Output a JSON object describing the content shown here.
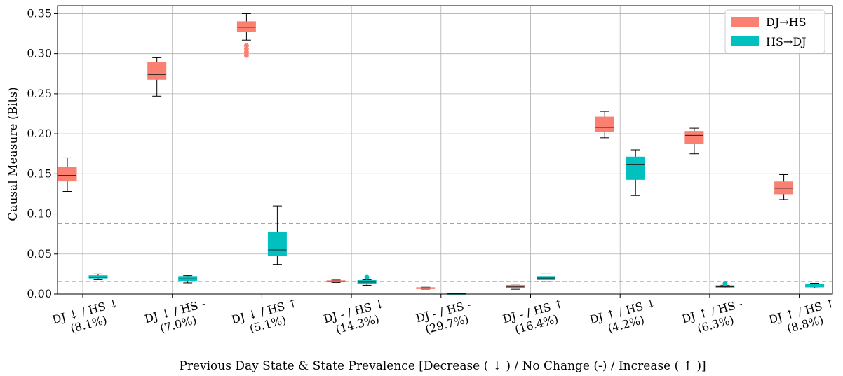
{
  "chart_data": {
    "type": "box",
    "title": "",
    "xlabel": "Previous Day State & State Prevalence [Decrease ( ↓ ) / No Change (-) / Increase ( ↑ )]",
    "ylabel": "Causal Measure (Bits)",
    "ylim": [
      0.0,
      0.36
    ],
    "yticks": [
      "0.00",
      "0.05",
      "0.10",
      "0.15",
      "0.20",
      "0.25",
      "0.30",
      "0.35"
    ],
    "grid": true,
    "legend": "top-right",
    "categories": [
      {
        "line1": "DJ ↓ / HS ↓",
        "line2": "(8.1%)"
      },
      {
        "line1": "DJ ↓ / HS -",
        "line2": "(7.0%)"
      },
      {
        "line1": "DJ ↓ / HS ↑",
        "line2": "(5.1%)"
      },
      {
        "line1": "DJ - / HS ↓",
        "line2": "(14.3%)"
      },
      {
        "line1": "DJ - / HS -",
        "line2": "(29.7%)"
      },
      {
        "line1": "DJ - / HS ↑",
        "line2": "(16.4%)"
      },
      {
        "line1": "DJ ↑ / HS ↓",
        "line2": "(4.2%)"
      },
      {
        "line1": "DJ ↑ / HS -",
        "line2": "(6.3%)"
      },
      {
        "line1": "DJ ↑ / HS ↑",
        "line2": "(8.8%)"
      }
    ],
    "series": [
      {
        "name": "DJ→HS",
        "color": "#FA8072",
        "boxes": [
          {
            "whislo": 0.128,
            "q1": 0.141,
            "med": 0.148,
            "q3": 0.158,
            "whishi": 0.17,
            "fliers": []
          },
          {
            "whislo": 0.247,
            "q1": 0.268,
            "med": 0.274,
            "q3": 0.289,
            "whishi": 0.295,
            "fliers": []
          },
          {
            "whislo": 0.317,
            "q1": 0.328,
            "med": 0.333,
            "q3": 0.34,
            "whishi": 0.35,
            "fliers": [
              0.298,
              0.302,
              0.306,
              0.31
            ]
          },
          {
            "whislo": 0.0145,
            "q1": 0.0152,
            "med": 0.016,
            "q3": 0.0168,
            "whishi": 0.0175,
            "fliers": []
          },
          {
            "whislo": 0.0062,
            "q1": 0.0068,
            "med": 0.0074,
            "q3": 0.008,
            "whishi": 0.0085,
            "fliers": []
          },
          {
            "whislo": 0.006,
            "q1": 0.0075,
            "med": 0.009,
            "q3": 0.011,
            "whishi": 0.0125,
            "fliers": []
          },
          {
            "whislo": 0.195,
            "q1": 0.203,
            "med": 0.208,
            "q3": 0.221,
            "whishi": 0.228,
            "fliers": []
          },
          {
            "whislo": 0.175,
            "q1": 0.188,
            "med": 0.198,
            "q3": 0.203,
            "whishi": 0.207,
            "fliers": []
          },
          {
            "whislo": 0.118,
            "q1": 0.125,
            "med": 0.132,
            "q3": 0.14,
            "whishi": 0.149,
            "fliers": []
          }
        ],
        "threshold": 0.088
      },
      {
        "name": "HS→DJ",
        "color": "#00C0C0",
        "boxes": [
          {
            "whislo": 0.018,
            "q1": 0.02,
            "med": 0.021,
            "q3": 0.023,
            "whishi": 0.025,
            "fliers": []
          },
          {
            "whislo": 0.014,
            "q1": 0.016,
            "med": 0.019,
            "q3": 0.022,
            "whishi": 0.023,
            "fliers": []
          },
          {
            "whislo": 0.037,
            "q1": 0.048,
            "med": 0.055,
            "q3": 0.077,
            "whishi": 0.11,
            "fliers": []
          },
          {
            "whislo": 0.011,
            "q1": 0.013,
            "med": 0.015,
            "q3": 0.017,
            "whishi": 0.018,
            "fliers": [
              0.021
            ]
          },
          {
            "whislo": 0.0002,
            "q1": 0.0004,
            "med": 0.0007,
            "q3": 0.001,
            "whishi": 0.0013,
            "fliers": []
          },
          {
            "whislo": 0.016,
            "q1": 0.018,
            "med": 0.02,
            "q3": 0.022,
            "whishi": 0.025,
            "fliers": []
          },
          {
            "whislo": 0.123,
            "q1": 0.143,
            "med": 0.162,
            "q3": 0.171,
            "whishi": 0.18,
            "fliers": []
          },
          {
            "whislo": 0.0075,
            "q1": 0.0085,
            "med": 0.0092,
            "q3": 0.0105,
            "whishi": 0.011,
            "fliers": [
              0.013
            ]
          },
          {
            "whislo": 0.0075,
            "q1": 0.0088,
            "med": 0.01,
            "q3": 0.012,
            "whishi": 0.0135,
            "fliers": []
          }
        ],
        "threshold": 0.016
      }
    ]
  }
}
